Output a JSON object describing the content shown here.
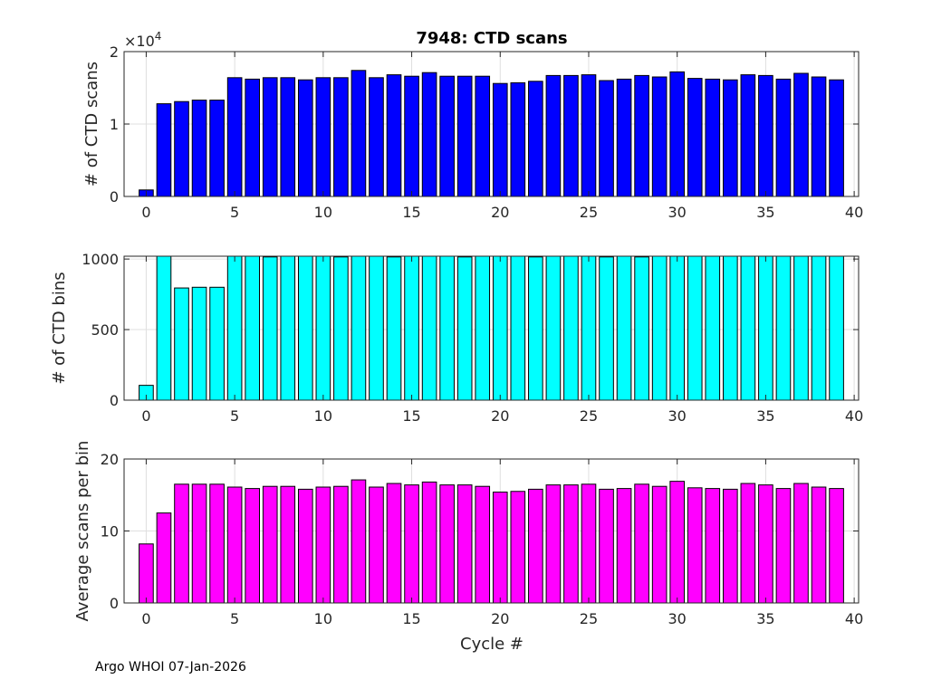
{
  "figure": {
    "title": "7948: CTD scans",
    "xlabel": "Cycle #",
    "footer": "Argo WHOI 07-Jan-2026"
  },
  "chart_data": [
    {
      "type": "bar",
      "ylabel": "# of CTD scans",
      "color": "#0000ff",
      "x": [
        0,
        1,
        2,
        3,
        4,
        5,
        6,
        7,
        8,
        9,
        10,
        11,
        12,
        13,
        14,
        15,
        16,
        17,
        18,
        19,
        20,
        21,
        22,
        23,
        24,
        25,
        26,
        27,
        28,
        29,
        30,
        31,
        32,
        33,
        34,
        35,
        36,
        37,
        38,
        39
      ],
      "values": [
        900,
        12800,
        13100,
        13300,
        13300,
        16400,
        16200,
        16400,
        16400,
        16100,
        16400,
        16400,
        17400,
        16400,
        16800,
        16600,
        17100,
        16600,
        16600,
        16600,
        15600,
        15700,
        15900,
        16700,
        16700,
        16800,
        16000,
        16200,
        16700,
        16500,
        17200,
        16300,
        16200,
        16100,
        16800,
        16700,
        16200,
        17000,
        16500,
        16100
      ],
      "xlim": [
        -1.25,
        40.25
      ],
      "ylim": [
        0,
        20000
      ],
      "xticks": [
        0,
        5,
        10,
        15,
        20,
        25,
        30,
        35,
        40
      ],
      "yticks": [
        0,
        1,
        2
      ],
      "ytick_multiplier": "×10",
      "ytick_exponent": "4",
      "grid": true
    },
    {
      "type": "bar",
      "ylabel": "# of CTD bins",
      "color": "#00ffff",
      "x": [
        0,
        1,
        2,
        3,
        4,
        5,
        6,
        7,
        8,
        9,
        10,
        11,
        12,
        13,
        14,
        15,
        16,
        17,
        18,
        19,
        20,
        21,
        22,
        23,
        24,
        25,
        26,
        27,
        28,
        29,
        30,
        31,
        32,
        33,
        34,
        35,
        36,
        37,
        38,
        39
      ],
      "values": [
        105,
        1020,
        795,
        800,
        800,
        1020,
        1020,
        1015,
        1020,
        1020,
        1020,
        1015,
        1020,
        1020,
        1015,
        1020,
        1020,
        1020,
        1015,
        1020,
        1020,
        1020,
        1015,
        1020,
        1020,
        1020,
        1015,
        1020,
        1015,
        1020,
        1020,
        1020,
        1020,
        1020,
        1020,
        1020,
        1020,
        1020,
        1020,
        1020
      ],
      "xlim": [
        -1.25,
        40.25
      ],
      "ylim": [
        0,
        1020
      ],
      "xticks": [
        0,
        5,
        10,
        15,
        20,
        25,
        30,
        35,
        40
      ],
      "yticks": [
        0,
        500,
        1000
      ],
      "grid": true
    },
    {
      "type": "bar",
      "ylabel": "Average scans per bin",
      "color": "#ff00ff",
      "x": [
        0,
        1,
        2,
        3,
        4,
        5,
        6,
        7,
        8,
        9,
        10,
        11,
        12,
        13,
        14,
        15,
        16,
        17,
        18,
        19,
        20,
        21,
        22,
        23,
        24,
        25,
        26,
        27,
        28,
        29,
        30,
        31,
        32,
        33,
        34,
        35,
        36,
        37,
        38,
        39
      ],
      "values": [
        8.2,
        12.5,
        16.5,
        16.5,
        16.5,
        16.1,
        15.9,
        16.2,
        16.2,
        15.8,
        16.1,
        16.2,
        17.1,
        16.1,
        16.6,
        16.4,
        16.8,
        16.4,
        16.4,
        16.2,
        15.4,
        15.5,
        15.8,
        16.4,
        16.4,
        16.5,
        15.8,
        15.9,
        16.5,
        16.2,
        16.9,
        16.0,
        15.9,
        15.8,
        16.6,
        16.4,
        15.9,
        16.6,
        16.1,
        15.9
      ],
      "xlim": [
        -1.25,
        40.25
      ],
      "ylim": [
        0,
        20
      ],
      "xticks": [
        0,
        5,
        10,
        15,
        20,
        25,
        30,
        35,
        40
      ],
      "yticks": [
        0,
        10,
        20
      ],
      "grid": true
    }
  ]
}
